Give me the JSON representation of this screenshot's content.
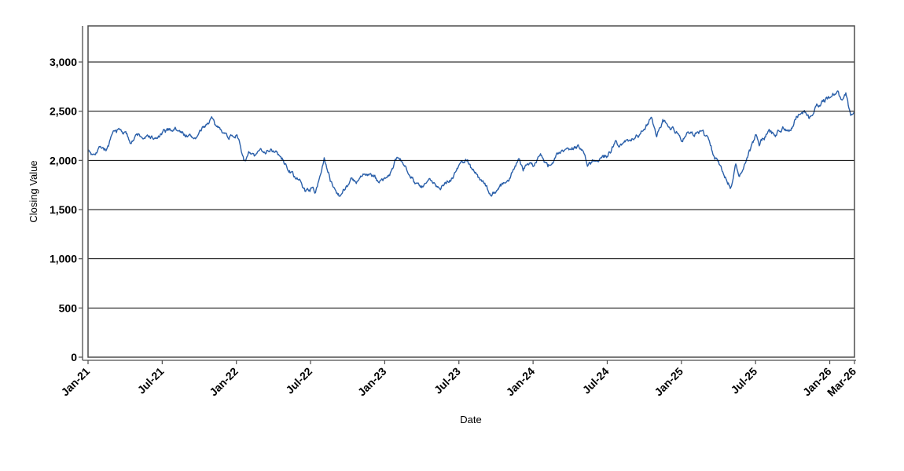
{
  "figure": {
    "background_color": "#ffffff",
    "title": "",
    "legend": "none"
  },
  "chart_data": {
    "type": "line",
    "title": "",
    "xlabel": "Date",
    "ylabel": "Closing Value",
    "grid": "horizontal",
    "legend": "none",
    "colors": {
      "line": "#2a5fa9",
      "gridline": "#000000",
      "plot_border": "#4d4d4d",
      "axis_line": "#4d4d4d",
      "text": "#000000"
    },
    "x_axis": {
      "unit": "months_since_Jan-2021",
      "range": [
        0,
        62
      ],
      "ticks": [
        {
          "label": "Jan-21",
          "m": 0
        },
        {
          "label": "Jul-21",
          "m": 6
        },
        {
          "label": "Jan-22",
          "m": 12
        },
        {
          "label": "Jul-22",
          "m": 18
        },
        {
          "label": "Jan-23",
          "m": 24
        },
        {
          "label": "Jul-23",
          "m": 30
        },
        {
          "label": "Jan-24",
          "m": 36
        },
        {
          "label": "Jul-24",
          "m": 42
        },
        {
          "label": "Jan-25",
          "m": 48
        },
        {
          "label": "Jul-25",
          "m": 54
        },
        {
          "label": "Jan-26",
          "m": 60
        },
        {
          "label": "Mar-26",
          "m": 62
        }
      ]
    },
    "y_axis": {
      "range": [
        0,
        3367
      ],
      "ticks": [
        {
          "label": "0",
          "v": 0
        },
        {
          "label": "500",
          "v": 500
        },
        {
          "label": "1,000",
          "v": 1000
        },
        {
          "label": "1,500",
          "v": 1500
        },
        {
          "label": "2,000",
          "v": 2000
        },
        {
          "label": "2,500",
          "v": 2500
        },
        {
          "label": "3,000",
          "v": 3000
        }
      ]
    },
    "series": [
      {
        "name": "closing-value",
        "color": "#2a5fa9",
        "style": "jagged-daily-line",
        "anchors": [
          [
            0,
            2110
          ],
          [
            0.3,
            2060
          ],
          [
            1,
            2160
          ],
          [
            1.5,
            2120
          ],
          [
            2,
            2250
          ],
          [
            2.4,
            2300
          ],
          [
            3,
            2280
          ],
          [
            3.4,
            2200
          ],
          [
            4,
            2260
          ],
          [
            4.6,
            2220
          ],
          [
            5,
            2240
          ],
          [
            5.5,
            2210
          ],
          [
            6,
            2260
          ],
          [
            6.5,
            2300
          ],
          [
            7,
            2330
          ],
          [
            7.5,
            2280
          ],
          [
            8,
            2260
          ],
          [
            8.5,
            2220
          ],
          [
            9,
            2270
          ],
          [
            9.5,
            2350
          ],
          [
            10,
            2440
          ],
          [
            10.4,
            2300
          ],
          [
            10.8,
            2330
          ],
          [
            11.3,
            2250
          ],
          [
            12,
            2280
          ],
          [
            12.6,
            2010
          ],
          [
            13,
            2060
          ],
          [
            13.5,
            2030
          ],
          [
            14,
            2090
          ],
          [
            14.8,
            2130
          ],
          [
            15.4,
            2050
          ],
          [
            16,
            1950
          ],
          [
            16.6,
            1850
          ],
          [
            17,
            1800
          ],
          [
            17.6,
            1690
          ],
          [
            18,
            1720
          ],
          [
            18.4,
            1680
          ],
          [
            19.1,
            2010
          ],
          [
            19.6,
            1800
          ],
          [
            20.3,
            1660
          ],
          [
            20.8,
            1740
          ],
          [
            21.3,
            1810
          ],
          [
            21.7,
            1760
          ],
          [
            22.3,
            1840
          ],
          [
            22.8,
            1870
          ],
          [
            23.4,
            1780
          ],
          [
            24,
            1810
          ],
          [
            24.5,
            1880
          ],
          [
            25,
            2005
          ],
          [
            25.5,
            1950
          ],
          [
            26,
            1890
          ],
          [
            26.6,
            1770
          ],
          [
            27,
            1710
          ],
          [
            27.5,
            1780
          ],
          [
            28,
            1760
          ],
          [
            28.5,
            1750
          ],
          [
            29,
            1790
          ],
          [
            29.5,
            1840
          ],
          [
            30,
            1950
          ],
          [
            30.6,
            2010
          ],
          [
            31.3,
            1890
          ],
          [
            31.8,
            1790
          ],
          [
            32.6,
            1655
          ],
          [
            33.3,
            1740
          ],
          [
            34,
            1790
          ],
          [
            34.8,
            2020
          ],
          [
            35.2,
            1930
          ],
          [
            35.7,
            2000
          ],
          [
            36,
            1960
          ],
          [
            36.6,
            2060
          ],
          [
            37.2,
            1930
          ],
          [
            38,
            2060
          ],
          [
            38.7,
            2090
          ],
          [
            39.3,
            2130
          ],
          [
            40,
            2130
          ],
          [
            40.4,
            1980
          ],
          [
            41,
            2020
          ],
          [
            41.6,
            2050
          ],
          [
            42,
            2030
          ],
          [
            42.7,
            2180
          ],
          [
            43.3,
            2150
          ],
          [
            44,
            2230
          ],
          [
            44.5,
            2260
          ],
          [
            45,
            2330
          ],
          [
            45.6,
            2440
          ],
          [
            46,
            2280
          ],
          [
            46.5,
            2420
          ],
          [
            47,
            2380
          ],
          [
            48,
            2220
          ],
          [
            48.5,
            2300
          ],
          [
            49,
            2260
          ],
          [
            49.7,
            2310
          ],
          [
            50,
            2250
          ],
          [
            50.6,
            2050
          ],
          [
            51.3,
            1900
          ],
          [
            52,
            1750
          ],
          [
            52.4,
            1950
          ],
          [
            52.7,
            1840
          ],
          [
            53.3,
            2010
          ],
          [
            54,
            2230
          ],
          [
            54.3,
            2170
          ],
          [
            55,
            2300
          ],
          [
            55.6,
            2250
          ],
          [
            56.2,
            2350
          ],
          [
            56.7,
            2300
          ],
          [
            57.3,
            2440
          ],
          [
            58,
            2500
          ],
          [
            58.3,
            2440
          ],
          [
            59,
            2570
          ],
          [
            59.6,
            2620
          ],
          [
            60,
            2650
          ],
          [
            60.6,
            2700
          ],
          [
            61,
            2630
          ],
          [
            61.3,
            2680
          ],
          [
            61.7,
            2470
          ],
          [
            62,
            2500
          ]
        ]
      }
    ]
  }
}
